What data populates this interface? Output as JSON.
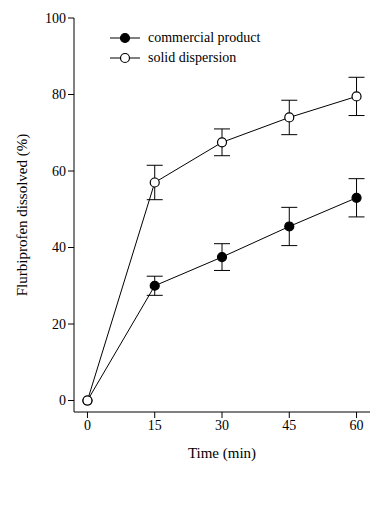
{
  "chart_data": {
    "type": "line",
    "x_label": "Time (min)",
    "y_label": "Flurbiprofen dissolved (%)",
    "x": [
      0,
      15,
      30,
      45,
      60
    ],
    "xlim": [
      -3,
      63
    ],
    "xticks": [
      0,
      15,
      30,
      45,
      60
    ],
    "ylim": [
      -3,
      100
    ],
    "yticks": [
      0,
      20,
      40,
      60,
      80,
      100
    ],
    "legend": "upper left",
    "grid": false,
    "series": [
      {
        "name": "commercial product",
        "color": "#000000",
        "marker": "filled_circle",
        "line_style": "solid",
        "values": [
          0,
          30,
          37.5,
          45.5,
          53
        ],
        "errors": [
          0,
          2.5,
          3.5,
          5,
          5
        ]
      },
      {
        "name": "solid dispersion",
        "color": "#000000",
        "marker": "open_circle",
        "line_style": "solid",
        "values": [
          0,
          57,
          67.5,
          74,
          79.5
        ],
        "errors": [
          0,
          4.5,
          3.5,
          4.5,
          5
        ]
      }
    ]
  }
}
